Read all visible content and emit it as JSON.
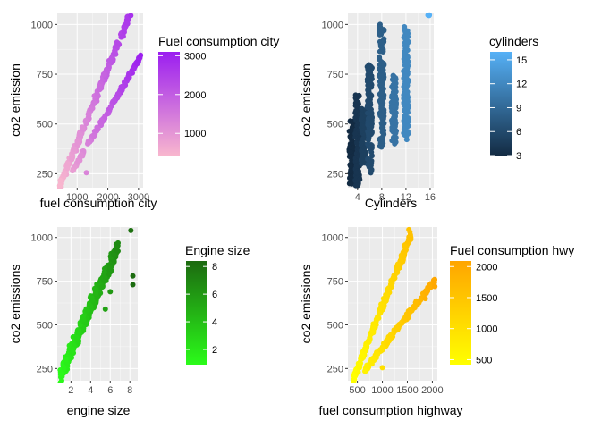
{
  "chart_data": [
    {
      "type": "scatter",
      "x_label": "fuel consumption city",
      "y_label": "co2 emission",
      "x_ticks": [
        1000,
        2000,
        3000
      ],
      "y_ticks": [
        250,
        500,
        750,
        1000
      ],
      "xlim": [
        350,
        3150
      ],
      "ylim": [
        180,
        1060
      ],
      "legend": {
        "title": "Fuel consumption city",
        "type": "colorbar",
        "range": [
          430,
          3100
        ],
        "ticks": [
          1000,
          2000,
          3000
        ],
        "colors": [
          "#F8B6CE",
          "#9B1EF0"
        ]
      },
      "bands": [
        {
          "x0": 430,
          "x1": 2700,
          "y0": 190,
          "y1": 1040,
          "spread": 70,
          "count": 260
        },
        {
          "x0": 780,
          "x1": 3080,
          "y0": 250,
          "y1": 840,
          "spread": 35,
          "count": 180
        }
      ],
      "points": [
        [
          2750,
          1045
        ],
        [
          3050,
          840
        ],
        [
          3000,
          820
        ],
        [
          1300,
          255
        ],
        [
          430,
          190
        ]
      ]
    },
    {
      "type": "scatter",
      "x_label": "Cylinders",
      "y_label": "co2 emission",
      "x_ticks": [
        4,
        8,
        12,
        16
      ],
      "y_ticks": [
        250,
        500,
        750,
        1000
      ],
      "xlim": [
        2.4,
        16.6
      ],
      "ylim": [
        180,
        1060
      ],
      "legend": {
        "title": "cylinders",
        "type": "colorbar",
        "range": [
          3,
          16
        ],
        "ticks": [
          3,
          6,
          9,
          12,
          15
        ],
        "colors": [
          "#132B43",
          "#56B1F7"
        ]
      },
      "columns": [
        {
          "x": 3,
          "y0": 195,
          "y1": 520
        },
        {
          "x": 4,
          "y0": 190,
          "y1": 650
        },
        {
          "x": 5,
          "y0": 300,
          "y1": 580
        },
        {
          "x": 6,
          "y0": 250,
          "y1": 800
        },
        {
          "x": 8,
          "y0": 380,
          "y1": 1000
        },
        {
          "x": 10,
          "y0": 400,
          "y1": 750
        },
        {
          "x": 12,
          "y0": 420,
          "y1": 990
        },
        {
          "x": 16,
          "y0": 1040,
          "y1": 1050
        }
      ]
    },
    {
      "type": "scatter",
      "x_label": "engine size",
      "y_label": "co2 emissions",
      "x_ticks": [
        2,
        4,
        6,
        8
      ],
      "y_ticks": [
        250,
        500,
        750,
        1000
      ],
      "xlim": [
        0.6,
        8.8
      ],
      "ylim": [
        180,
        1060
      ],
      "legend": {
        "title": "Engine size",
        "type": "colorbar",
        "range": [
          0.9,
          8.4
        ],
        "ticks": [
          2,
          4,
          6,
          8
        ],
        "colors": [
          "#2BFB1A",
          "#1C6A10"
        ]
      },
      "bands": [
        {
          "x0": 0.9,
          "x1": 6.8,
          "y0": 210,
          "y1": 950,
          "spread": 150,
          "count": 380
        }
      ],
      "points": [
        [
          8.1,
          1040
        ],
        [
          8.3,
          780
        ],
        [
          8.3,
          730
        ],
        [
          6.0,
          690
        ],
        [
          5.5,
          590
        ]
      ]
    },
    {
      "type": "scatter",
      "x_label": "fuel consumption highway",
      "y_label": "co2 emissions",
      "x_ticks": [
        500,
        1000,
        1500,
        2000
      ],
      "y_ticks": [
        250,
        500,
        750,
        1000
      ],
      "xlim": [
        310,
        2100
      ],
      "ylim": [
        180,
        1060
      ],
      "legend": {
        "title": "Fuel consumption hwy",
        "type": "colorbar",
        "range": [
          420,
          2090
        ],
        "ticks": [
          500,
          1000,
          1500,
          2000
        ],
        "colors": [
          "#FFFF00",
          "#FFA500"
        ]
      },
      "bands": [
        {
          "x0": 420,
          "x1": 1580,
          "y0": 190,
          "y1": 1020,
          "spread": 80,
          "count": 260
        },
        {
          "x0": 650,
          "x1": 2060,
          "y0": 240,
          "y1": 760,
          "spread": 45,
          "count": 180
        }
      ],
      "points": [
        [
          1530,
          1045
        ],
        [
          2050,
          720
        ],
        [
          1000,
          255
        ],
        [
          1860,
          650
        ]
      ]
    }
  ]
}
